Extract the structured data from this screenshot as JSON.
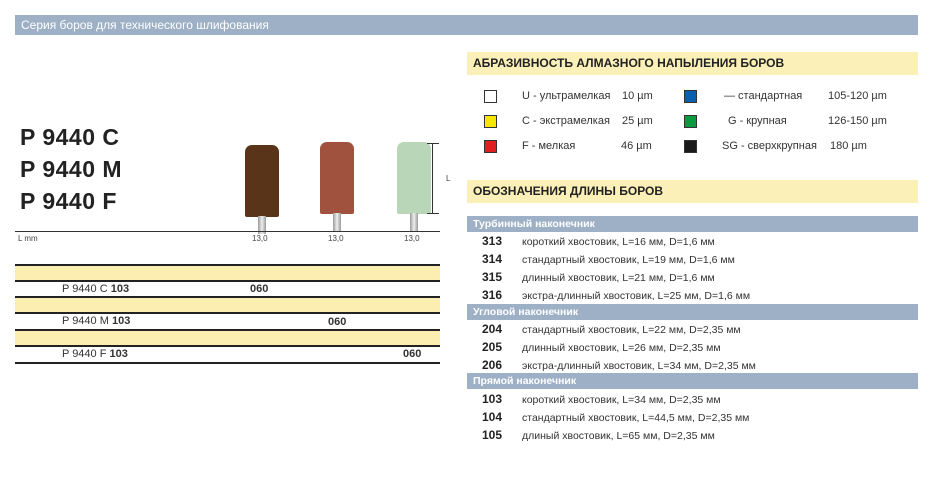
{
  "header": {
    "title": "Серия боров для технического шлифования"
  },
  "models": [
    "P 9440 C",
    "P 9440 M",
    "P 9440 F"
  ],
  "bur_colors": [
    "#5a3418",
    "#a0523f",
    "#b9d6b8"
  ],
  "dimension_label": "L",
  "l_mm_label": "L mm",
  "lengths": [
    "13,0",
    "13,0",
    "13,0"
  ],
  "order_rows": [
    {
      "prefix": "P 9440 C ",
      "suffix": "103",
      "value": "060"
    },
    {
      "prefix": "P 9440 M ",
      "suffix": "103",
      "value": "060"
    },
    {
      "prefix": "P 9440 F ",
      "suffix": "103",
      "value": "060"
    }
  ],
  "abrasiveness": {
    "title": "АБРАЗИВНОСТЬ АЛМАЗНОГО НАПЫЛЕНИЯ БОРОВ",
    "items": [
      {
        "color": "#ffffff",
        "label": "U - ультрамелкая",
        "size": "10 µm"
      },
      {
        "color": "#f7e600",
        "label": "C - экстрамелкая",
        "size": "25 µm"
      },
      {
        "color": "#e02020",
        "label": "F - мелкая",
        "size": "46 µm"
      },
      {
        "color": "#0a5fb0",
        "label": "—  стандартная",
        "size": "105-120 µm"
      },
      {
        "color": "#0a9a40",
        "label": "G - крупная",
        "size": "126-150 µm"
      },
      {
        "color": "#1a1a1a",
        "label": "SG - сверхкрупная",
        "size": "180 µm"
      }
    ]
  },
  "lengths_section": {
    "title": "ОБОЗНАЧЕНИЯ ДЛИНЫ БОРОВ",
    "groups": [
      {
        "name": "Турбинный наконечник",
        "rows": [
          {
            "code": "313",
            "desc": "короткий хвостовик, L=16 мм, D=1,6 мм"
          },
          {
            "code": "314",
            "desc": "стандартный хвостовик, L=19 мм, D=1,6 мм"
          },
          {
            "code": "315",
            "desc": "длинный хвостовик, L=21 мм, D=1,6 мм"
          },
          {
            "code": "316",
            "desc": "экстра-длинный хвостовик, L=25 мм, D=1,6 мм"
          }
        ]
      },
      {
        "name": "Угловой наконечник",
        "rows": [
          {
            "code": "204",
            "desc": "стандартный хвостовик, L=22 мм, D=2,35 мм"
          },
          {
            "code": "205",
            "desc": "длинный хвостовик, L=26 мм, D=2,35 мм"
          },
          {
            "code": "206",
            "desc": "экстра-длинный хвостовик, L=34 мм, D=2,35 мм"
          }
        ]
      },
      {
        "name": "Прямой наконечник",
        "rows": [
          {
            "code": "103",
            "desc": "короткий хвостовик, L=34 мм, D=2,35 мм"
          },
          {
            "code": "104",
            "desc": "стандартный хвостовик, L=44,5 мм, D=2,35 мм"
          },
          {
            "code": "105",
            "desc": "длиный хвостовик, L=65 мм, D=2,35 мм"
          }
        ]
      }
    ]
  }
}
